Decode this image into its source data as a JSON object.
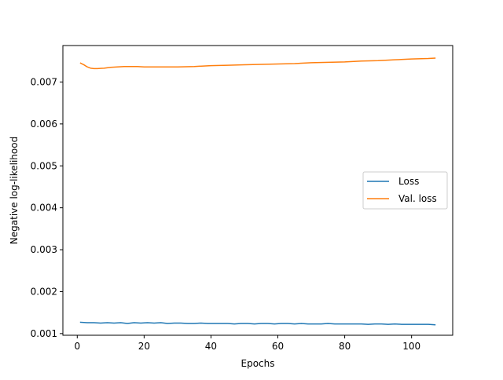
{
  "chart_data": {
    "type": "line",
    "title": "",
    "xlabel": "Epochs",
    "ylabel": "Negative log-likelihood",
    "xlim": [
      -4.3,
      112.3
    ],
    "ylim": [
      0.00096,
      0.00787
    ],
    "xticks": [
      0,
      20,
      40,
      60,
      80,
      100
    ],
    "xtick_labels": [
      "0",
      "20",
      "40",
      "60",
      "80",
      "100"
    ],
    "yticks": [
      0.001,
      0.002,
      0.003,
      0.004,
      0.005,
      0.006,
      0.007
    ],
    "ytick_labels": [
      "0.001",
      "0.002",
      "0.003",
      "0.004",
      "0.005",
      "0.006",
      "0.007"
    ],
    "grid": false,
    "legend_position": "center-right",
    "series": [
      {
        "name": "Loss",
        "color": "#1f77b4",
        "x": [
          1,
          3,
          5,
          7,
          9,
          11,
          13,
          15,
          17,
          19,
          21,
          23,
          25,
          27,
          29,
          31,
          33,
          35,
          37,
          39,
          41,
          43,
          45,
          47,
          49,
          51,
          53,
          55,
          57,
          59,
          61,
          63,
          65,
          67,
          69,
          71,
          73,
          75,
          77,
          79,
          81,
          83,
          85,
          87,
          89,
          91,
          93,
          95,
          97,
          99,
          101,
          103,
          105,
          107
        ],
        "values": [
          0.00127,
          0.00126,
          0.00126,
          0.00125,
          0.00126,
          0.00125,
          0.00126,
          0.00124,
          0.00126,
          0.00125,
          0.00126,
          0.00125,
          0.00126,
          0.00124,
          0.00125,
          0.00125,
          0.00124,
          0.00124,
          0.00125,
          0.00124,
          0.00124,
          0.00124,
          0.00124,
          0.00123,
          0.00124,
          0.00124,
          0.00123,
          0.00124,
          0.00124,
          0.00123,
          0.00124,
          0.00124,
          0.00123,
          0.00124,
          0.00123,
          0.00123,
          0.00123,
          0.00124,
          0.00123,
          0.00123,
          0.00123,
          0.00123,
          0.00123,
          0.00122,
          0.00123,
          0.00123,
          0.00122,
          0.00123,
          0.00122,
          0.00122,
          0.00122,
          0.00122,
          0.00122,
          0.00121
        ]
      },
      {
        "name": "Val. loss",
        "color": "#ff7f0e",
        "x": [
          1,
          2,
          3,
          4,
          5,
          6,
          8,
          10,
          12,
          14,
          16,
          18,
          20,
          25,
          30,
          35,
          40,
          45,
          50,
          55,
          60,
          65,
          70,
          75,
          80,
          85,
          90,
          95,
          100,
          105,
          107
        ],
        "values": [
          0.00745,
          0.00741,
          0.00736,
          0.00733,
          0.00732,
          0.00732,
          0.00733,
          0.00735,
          0.00736,
          0.00737,
          0.00737,
          0.00737,
          0.00736,
          0.00736,
          0.00736,
          0.00737,
          0.00739,
          0.0074,
          0.00741,
          0.00742,
          0.00743,
          0.00744,
          0.00746,
          0.00747,
          0.00748,
          0.0075,
          0.00751,
          0.00753,
          0.00755,
          0.00756,
          0.00757
        ]
      }
    ]
  }
}
